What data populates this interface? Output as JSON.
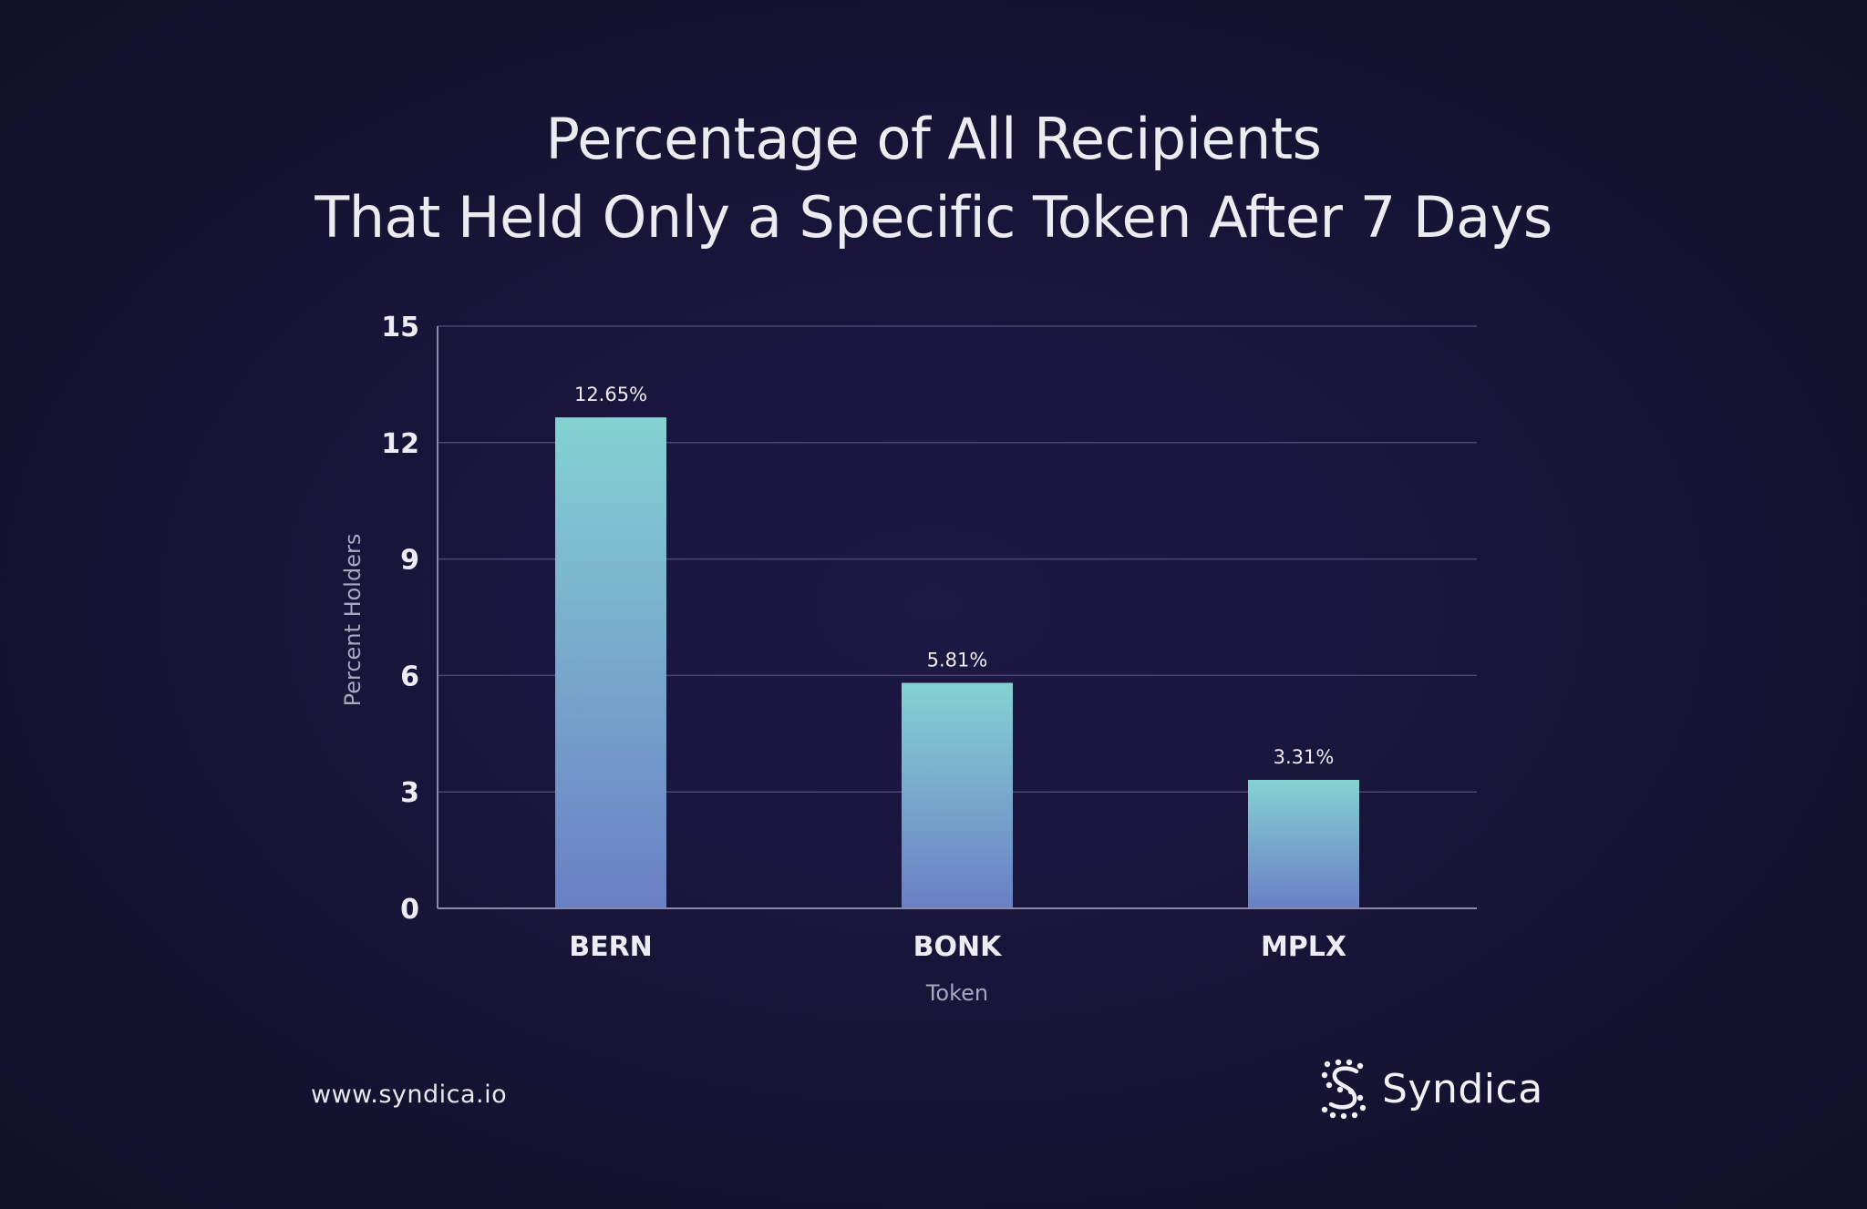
{
  "chart_data": {
    "type": "bar",
    "title_lines": [
      "Percentage of All Recipients",
      "That Held Only a Specific Token After 7 Days"
    ],
    "xlabel": "Token",
    "ylabel": "Percent Holders",
    "categories": [
      "BERN",
      "BONK",
      "MPLX"
    ],
    "values": [
      12.65,
      5.81,
      3.31
    ],
    "data_labels": [
      "12.65%",
      "5.81%",
      "3.31%"
    ],
    "ylim": [
      0,
      15
    ],
    "yticks": [
      "0",
      "3",
      "6",
      "9",
      "12",
      "15"
    ],
    "grid": true,
    "legend": "none",
    "colors": {
      "bar_top": "#84d2d2",
      "bar_bottom": "#6a7fc5",
      "grid": "#4a4770",
      "axis": "#8c8aaa",
      "text": "#ececf2",
      "axis_label": "#a9a7bf"
    }
  },
  "footer": {
    "url": "www.syndica.io",
    "brand_name": "Syndica",
    "logo_icon": "syndica-logo-icon"
  }
}
